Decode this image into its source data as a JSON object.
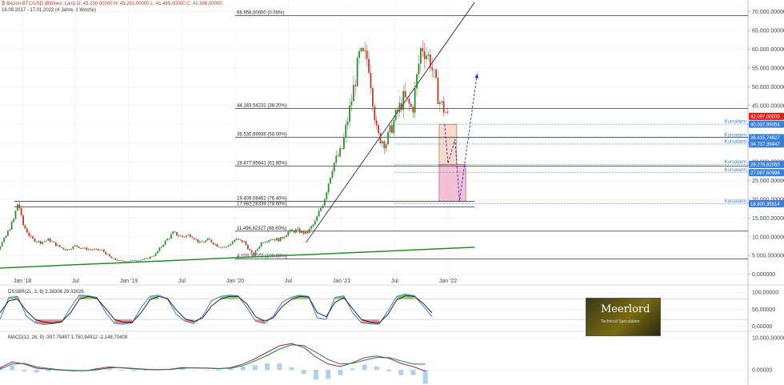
{
  "header": {
    "symbol_line": "₿ Bitcoin BTC/USD (Bitfinex; Last)  O: 43.230,00000  H: 43.281,00000  L: 41.465,00000  C: 41.998,00000",
    "range_line": "18.09.2017 - 17.01.2022  (4 Jahre, 1 Woche)"
  },
  "colors": {
    "candle_up": "#2e8b2e",
    "candle_down": "#c0392b",
    "price_tag": "#e02020",
    "alarm_tag": "#3b7fd6",
    "trendline_green": "#2a8a2a",
    "forecast": "#2b2bd6",
    "box_orange": "#fbd3bb",
    "box_pink": "#f1b6cf"
  },
  "chart_data": [
    {
      "type": "candlestick",
      "panel": "price",
      "x_tick_labels": [
        "Jan '18",
        "Jul",
        "Jan '19",
        "Jul",
        "Jan '20",
        "Jul",
        "Jan '21",
        "Jul",
        "Jan '22"
      ],
      "x_ticks": [
        "2018-01",
        "2018-07",
        "2019-01",
        "2019-07",
        "2020-01",
        "2020-07",
        "2021-01",
        "2021-07",
        "2022-01"
      ],
      "y_tick_labels": [
        "0,000000",
        "5.000.000000",
        "10.000.000000",
        "15.000.000000",
        "20.000.000000",
        "25.000.000000",
        "30.000.000000",
        "35.000.000000",
        "40.000.000000",
        "45.000.000000",
        "50.000.000000",
        "55.000.000000",
        "60.000.000000",
        "65.000.000000",
        "70.000.000000"
      ],
      "y_ticks": [
        0,
        5000,
        10000,
        15000,
        20000,
        25000,
        30000,
        35000,
        40000,
        45000,
        50000,
        55000,
        60000,
        65000,
        70000
      ],
      "ylim": [
        -2000,
        72500
      ],
      "close_path": [
        [
          "2017-09",
          4000
        ],
        [
          "2017-10",
          5800
        ],
        [
          "2017-11",
          9500
        ],
        [
          "2017-12",
          14500
        ],
        [
          "2017-12-17",
          19500
        ],
        [
          "2018-01",
          13500
        ],
        [
          "2018-02",
          9500
        ],
        [
          "2018-03",
          8500
        ],
        [
          "2018-04",
          9200
        ],
        [
          "2018-05",
          7500
        ],
        [
          "2018-06",
          6500
        ],
        [
          "2018-07",
          7600
        ],
        [
          "2018-08",
          6800
        ],
        [
          "2018-09",
          6500
        ],
        [
          "2018-10",
          6400
        ],
        [
          "2018-11",
          4300
        ],
        [
          "2018-12",
          3500
        ],
        [
          "2019-01",
          3500
        ],
        [
          "2019-02",
          3800
        ],
        [
          "2019-03",
          4100
        ],
        [
          "2019-04",
          5300
        ],
        [
          "2019-05",
          8500
        ],
        [
          "2019-06",
          11000
        ],
        [
          "2019-07",
          10000
        ],
        [
          "2019-08",
          10500
        ],
        [
          "2019-09",
          8300
        ],
        [
          "2019-10",
          9200
        ],
        [
          "2019-11",
          7600
        ],
        [
          "2019-12",
          7200
        ],
        [
          "2020-01",
          9300
        ],
        [
          "2020-02",
          8600
        ],
        [
          "2020-03",
          5000
        ],
        [
          "2020-04",
          8600
        ],
        [
          "2020-05",
          9500
        ],
        [
          "2020-06",
          9200
        ],
        [
          "2020-07",
          11300
        ],
        [
          "2020-08",
          11700
        ],
        [
          "2020-09",
          10800
        ],
        [
          "2020-10",
          13800
        ],
        [
          "2020-11",
          19700
        ],
        [
          "2020-12",
          29000
        ],
        [
          "2021-01",
          33000
        ],
        [
          "2021-02",
          45000
        ],
        [
          "2021-03",
          58000
        ],
        [
          "2021-04",
          57500
        ],
        [
          "2021-05",
          37000
        ],
        [
          "2021-06",
          35000
        ],
        [
          "2021-07",
          41500
        ],
        [
          "2021-08",
          47000
        ],
        [
          "2021-09",
          43800
        ],
        [
          "2021-10",
          61300
        ],
        [
          "2021-11",
          57000
        ],
        [
          "2021-12",
          46300
        ],
        [
          "2022-01",
          42000
        ]
      ],
      "fibonacci_levels": [
        {
          "label": "68.958,00000 (0.00%)",
          "value": 68958
        },
        {
          "label": "44.183,54231 (38.20%)",
          "value": 44183.54231
        },
        {
          "label": "36.530,69936 (50.00%)",
          "value": 36530.69936
        },
        {
          "label": "28.877,85641 (61.80%)",
          "value": 28877.85641
        },
        {
          "label": "19.409,08462 (76.40%)",
          "value": 19409.08462
        },
        {
          "label": "17.982,28339 (78.60%)",
          "value": 17982.28339
        },
        {
          "label": "11.496,82327 (88.60%)",
          "value": 11496.82327
        },
        {
          "label": "4.103,38072 (100.00%)",
          "value": 4103.38072
        }
      ],
      "price_alarms": [
        {
          "label": "Kursalarm",
          "value": 40037.99054,
          "tag": "40.037,99054"
        },
        {
          "label": "Kursalarm",
          "value": 36415.74627,
          "tag": "36.415,74627"
        },
        {
          "label": "Kursalarm",
          "value": 34737.39447,
          "tag": "34.737,39447"
        },
        {
          "label": "Kursalarm",
          "value": 29276.8205,
          "tag": "29.276,82050"
        },
        {
          "label": "Kursalarm",
          "value": 27087.60996,
          "tag": "27.087,60996"
        },
        {
          "label": "Kursalarm",
          "value": 18800.35514,
          "tag": "18.800,35514"
        }
      ],
      "last_price": {
        "value": 42097,
        "tag": "42.097,00000"
      },
      "trendlines": [
        {
          "name": "support",
          "from": [
            "2017-09",
            1500
          ],
          "to": [
            "2022-04",
            7200
          ]
        },
        {
          "name": "rising",
          "from": [
            "2020-09",
            8500
          ],
          "to": [
            "2022-04",
            72500
          ]
        }
      ],
      "zones": [
        {
          "name": "orange",
          "x": [
            "2021-12",
            "2022-01-31"
          ],
          "y": [
            29000,
            40000
          ]
        },
        {
          "name": "pink",
          "x": [
            "2021-12",
            "2022-03"
          ],
          "y": [
            19409,
            29277
          ]
        }
      ],
      "forecast_path": [
        [
          "2021-12-20",
          40000
        ],
        [
          "2022-01-01",
          29500
        ],
        [
          "2022-01-25",
          36000
        ],
        [
          "2022-02-10",
          19600
        ],
        [
          "2022-04-10",
          53500
        ]
      ]
    },
    {
      "type": "line",
      "panel": "oscillator",
      "legend": "DSSBR(21, 3, 8)  2.38306  29.33026",
      "y_tick_labels": [
        "100,00000",
        "50,00000",
        "0,00000"
      ],
      "y_ticks": [
        100,
        50,
        0
      ],
      "ylim": [
        -8,
        110
      ],
      "series": [
        {
          "values": [
            [
              -2,
              20
            ],
            [
              -1,
              85
            ],
            [
              0,
              88
            ],
            [
              1,
              30
            ],
            [
              2,
              10
            ],
            [
              3,
              5
            ],
            [
              4,
              8
            ],
            [
              5,
              12
            ],
            [
              6,
              55
            ],
            [
              7,
              92
            ],
            [
              8,
              90
            ],
            [
              9,
              85
            ],
            [
              10,
              40
            ],
            [
              11,
              8
            ],
            [
              12,
              6
            ],
            [
              13,
              10
            ],
            [
              14,
              55
            ],
            [
              15,
              88
            ],
            [
              16,
              92
            ],
            [
              17,
              80
            ],
            [
              18,
              35
            ],
            [
              19,
              15
            ],
            [
              20,
              8
            ],
            [
              21,
              30
            ],
            [
              22,
              75
            ],
            [
              23,
              88
            ],
            [
              24,
              92
            ],
            [
              25,
              90
            ],
            [
              26,
              55
            ],
            [
              27,
              15
            ],
            [
              28,
              8
            ],
            [
              29,
              30
            ],
            [
              30,
              70
            ],
            [
              31,
              85
            ],
            [
              32,
              92
            ],
            [
              33,
              88
            ],
            [
              34,
              25
            ],
            [
              35,
              20
            ],
            [
              36,
              85
            ],
            [
              37,
              90
            ],
            [
              38,
              40
            ],
            [
              39,
              10
            ],
            [
              40,
              7
            ],
            [
              41,
              6
            ],
            [
              42,
              45
            ],
            [
              43,
              88
            ],
            [
              44,
              95
            ],
            [
              45,
              90
            ],
            [
              46,
              60
            ],
            [
              47,
              29
            ]
          ]
        },
        {
          "values": [
            [
              -2,
              40
            ],
            [
              -1,
              75
            ],
            [
              0,
              80
            ],
            [
              1,
              45
            ],
            [
              2,
              20
            ],
            [
              3,
              12
            ],
            [
              4,
              10
            ],
            [
              5,
              14
            ],
            [
              6,
              40
            ],
            [
              7,
              80
            ],
            [
              8,
              88
            ],
            [
              9,
              82
            ],
            [
              10,
              52
            ],
            [
              11,
              20
            ],
            [
              12,
              12
            ],
            [
              13,
              12
            ],
            [
              14,
              40
            ],
            [
              15,
              78
            ],
            [
              16,
              88
            ],
            [
              17,
              82
            ],
            [
              18,
              48
            ],
            [
              19,
              22
            ],
            [
              20,
              14
            ],
            [
              21,
              25
            ],
            [
              22,
              60
            ],
            [
              23,
              80
            ],
            [
              24,
              88
            ],
            [
              25,
              88
            ],
            [
              26,
              66
            ],
            [
              27,
              28
            ],
            [
              28,
              15
            ],
            [
              29,
              25
            ],
            [
              30,
              58
            ],
            [
              31,
              78
            ],
            [
              32,
              88
            ],
            [
              33,
              86
            ],
            [
              34,
              40
            ],
            [
              35,
              28
            ],
            [
              36,
              70
            ],
            [
              37,
              84
            ],
            [
              38,
              52
            ],
            [
              39,
              20
            ],
            [
              40,
              12
            ],
            [
              41,
              10
            ],
            [
              42,
              35
            ],
            [
              43,
              78
            ],
            [
              44,
              90
            ],
            [
              45,
              88
            ],
            [
              46,
              68
            ],
            [
              47,
              40
            ]
          ]
        }
      ]
    },
    {
      "type": "line",
      "panel": "macd",
      "legend": "MACD(12, 26, 9)  -397.75497  1.750,94912  -2.148,70409",
      "y_tick_labels": [
        "10.000,00000",
        "0,00000"
      ],
      "y_ticks": [
        10000,
        0
      ],
      "ylim": [
        -3500,
        11000
      ],
      "series": [
        {
          "values": [
            [
              -2,
              600
            ],
            [
              -1,
              2500
            ],
            [
              0,
              1800
            ],
            [
              1,
              500
            ],
            [
              2,
              200
            ],
            [
              3,
              -100
            ],
            [
              4,
              -300
            ],
            [
              5,
              -300
            ],
            [
              6,
              300
            ],
            [
              7,
              900
            ],
            [
              8,
              600
            ],
            [
              9,
              300
            ],
            [
              10,
              100
            ],
            [
              11,
              0
            ],
            [
              12,
              200
            ],
            [
              13,
              700
            ],
            [
              14,
              600
            ],
            [
              15,
              500
            ],
            [
              16,
              300
            ],
            [
              17,
              700
            ],
            [
              18,
              1800
            ],
            [
              19,
              3500
            ],
            [
              20,
              5500
            ],
            [
              21,
              7500
            ],
            [
              22,
              8200
            ],
            [
              23,
              7000
            ],
            [
              24,
              4000
            ],
            [
              25,
              1800
            ],
            [
              26,
              1000
            ],
            [
              27,
              2200
            ],
            [
              28,
              3800
            ],
            [
              29,
              4300
            ],
            [
              30,
              3600
            ],
            [
              31,
              2000
            ],
            [
              32,
              1000
            ],
            [
              33,
              -400
            ]
          ]
        },
        {
          "values": [
            [
              -2,
              200
            ],
            [
              -1,
              1800
            ],
            [
              0,
              2000
            ],
            [
              1,
              900
            ],
            [
              2,
              400
            ],
            [
              3,
              0
            ],
            [
              4,
              -200
            ],
            [
              5,
              -300
            ],
            [
              6,
              0
            ],
            [
              7,
              600
            ],
            [
              8,
              700
            ],
            [
              9,
              450
            ],
            [
              10,
              200
            ],
            [
              11,
              50
            ],
            [
              12,
              100
            ],
            [
              13,
              500
            ],
            [
              14,
              600
            ],
            [
              15,
              550
            ],
            [
              16,
              400
            ],
            [
              17,
              500
            ],
            [
              18,
              1300
            ],
            [
              19,
              2800
            ],
            [
              20,
              4500
            ],
            [
              21,
              6500
            ],
            [
              22,
              7800
            ],
            [
              23,
              7600
            ],
            [
              24,
              5500
            ],
            [
              25,
              3200
            ],
            [
              26,
              1800
            ],
            [
              27,
              2000
            ],
            [
              28,
              3000
            ],
            [
              29,
              3800
            ],
            [
              30,
              3800
            ],
            [
              31,
              2800
            ],
            [
              32,
              1800
            ],
            [
              33,
              1750
            ]
          ]
        }
      ]
    }
  ],
  "logo": {
    "title": "Meerlord",
    "subtitle": "Technical Speculation"
  }
}
